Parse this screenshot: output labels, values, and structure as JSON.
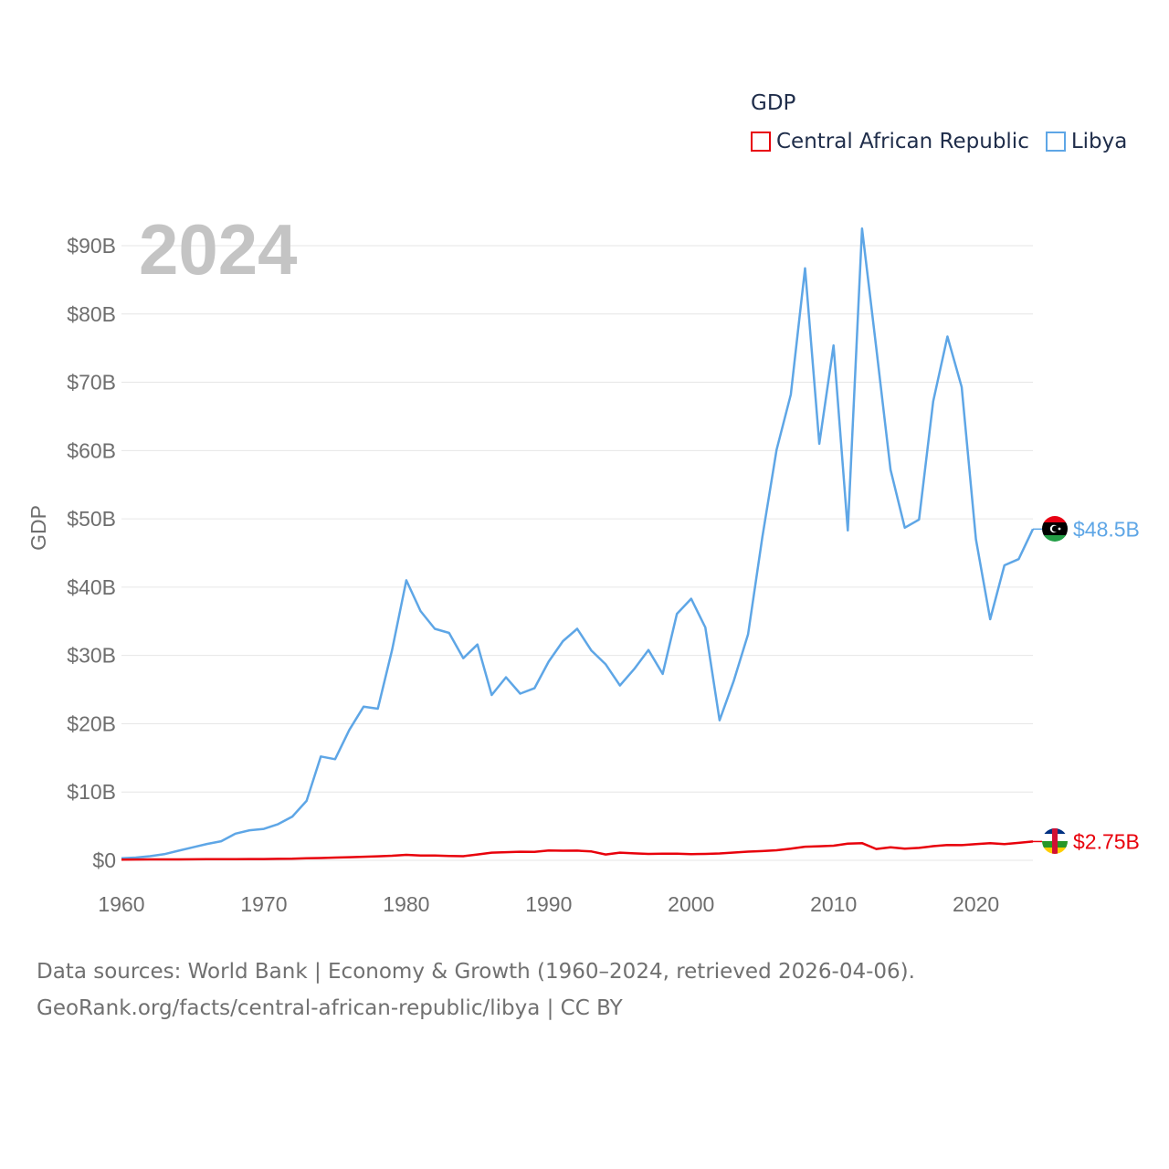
{
  "legend": {
    "title": "GDP",
    "items": [
      {
        "label": "Central African Republic",
        "color": "#e8000b"
      },
      {
        "label": "Libya",
        "color": "#5ea6e6"
      }
    ]
  },
  "year_label": "2024",
  "footer": {
    "line1": "Data sources: World Bank | Economy & Growth (1960–2024, retrieved 2026-04-06).",
    "line2": "GeoRank.org/facts/central-african-republic/libya | CC BY"
  },
  "chart_data": {
    "type": "line",
    "title": "GDP",
    "ylabel": "GDP",
    "xlabel": "",
    "xlim": [
      1960,
      2024
    ],
    "ylim": [
      0,
      95
    ],
    "x_ticks": [
      1960,
      1970,
      1980,
      1990,
      2000,
      2010,
      2020
    ],
    "x_tick_labels": [
      "1960",
      "1970",
      "1980",
      "1990",
      "2000",
      "2010",
      "2020"
    ],
    "y_ticks": [
      0,
      10,
      20,
      30,
      40,
      50,
      60,
      70,
      80,
      90
    ],
    "y_tick_labels": [
      "$0",
      "$10B",
      "$20B",
      "$30B",
      "$40B",
      "$50B",
      "$60B",
      "$70B",
      "$80B",
      "$90B"
    ],
    "grid": true,
    "legend_position": "top-right",
    "x": [
      1960,
      1961,
      1962,
      1963,
      1964,
      1965,
      1966,
      1967,
      1968,
      1969,
      1970,
      1971,
      1972,
      1973,
      1974,
      1975,
      1976,
      1977,
      1978,
      1979,
      1980,
      1981,
      1982,
      1983,
      1984,
      1985,
      1986,
      1987,
      1988,
      1989,
      1990,
      1991,
      1992,
      1993,
      1994,
      1995,
      1996,
      1997,
      1998,
      1999,
      2000,
      2001,
      2002,
      2003,
      2004,
      2005,
      2006,
      2007,
      2008,
      2009,
      2010,
      2011,
      2012,
      2013,
      2014,
      2015,
      2016,
      2017,
      2018,
      2019,
      2020,
      2021,
      2022,
      2023,
      2024
    ],
    "series": [
      {
        "name": "Libya",
        "color": "#5ea6e6",
        "end_label": "$48.5B",
        "values": [
          0.3,
          0.4,
          0.6,
          0.9,
          1.4,
          1.9,
          2.4,
          2.8,
          3.9,
          4.4,
          4.6,
          5.3,
          6.4,
          8.7,
          15.2,
          14.8,
          19.1,
          22.5,
          22.2,
          30.8,
          41.0,
          36.5,
          33.9,
          33.3,
          29.6,
          31.6,
          24.2,
          26.8,
          24.4,
          25.2,
          29.1,
          32.1,
          33.9,
          30.7,
          28.7,
          25.6,
          28.0,
          30.8,
          27.3,
          36.1,
          38.3,
          34.1,
          20.5,
          26.3,
          33.1,
          47.3,
          60.1,
          68.2,
          86.7,
          61.0,
          75.4,
          48.3,
          92.5,
          75.0,
          57.2,
          48.7,
          49.9,
          67.2,
          76.7,
          69.3,
          47.0,
          35.3,
          43.2,
          44.1,
          48.5
        ]
      },
      {
        "name": "Central African Republic",
        "color": "#e8000b",
        "end_label": "$2.75B",
        "values": [
          0.11,
          0.12,
          0.13,
          0.14,
          0.14,
          0.15,
          0.16,
          0.16,
          0.17,
          0.19,
          0.19,
          0.21,
          0.23,
          0.29,
          0.33,
          0.4,
          0.45,
          0.52,
          0.59,
          0.67,
          0.8,
          0.69,
          0.7,
          0.64,
          0.6,
          0.86,
          1.12,
          1.19,
          1.26,
          1.24,
          1.44,
          1.4,
          1.42,
          1.3,
          0.85,
          1.13,
          1.02,
          0.94,
          0.97,
          0.98,
          0.91,
          0.94,
          1.0,
          1.14,
          1.27,
          1.35,
          1.47,
          1.7,
          1.99,
          2.06,
          2.14,
          2.43,
          2.51,
          1.66,
          1.9,
          1.7,
          1.82,
          2.07,
          2.24,
          2.22,
          2.38,
          2.52,
          2.38,
          2.56,
          2.75
        ]
      }
    ]
  }
}
